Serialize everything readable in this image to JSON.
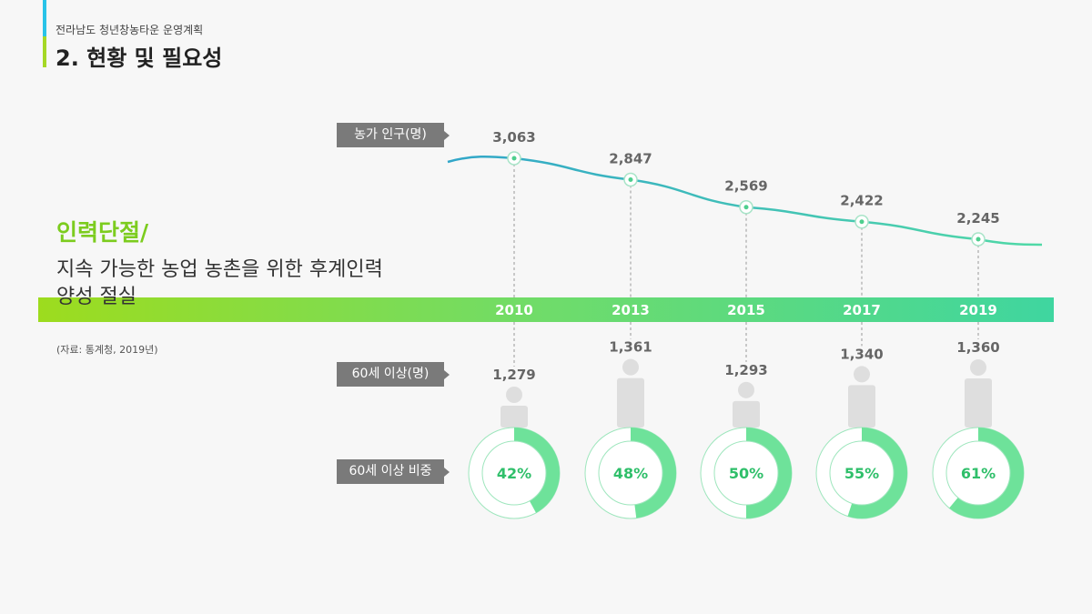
{
  "header": {
    "subtitle": "전라남도 청년창농타운 운영계획",
    "title": "2. 현황 및 필요성"
  },
  "left": {
    "headline": "인력단절/",
    "body": "지속 가능한 농업 농촌을 위한 후계인력 양성 절실",
    "source": "(자료: 통계청, 2019년)"
  },
  "colors": {
    "bar_start": "#9ddc1e",
    "bar_end": "#3fd6a0",
    "donut": "#6ee29a",
    "person": "#dedede"
  },
  "chart_data": {
    "type": "line",
    "categories": [
      "2010",
      "2013",
      "2015",
      "2017",
      "2019"
    ],
    "series": [
      {
        "name": "농가 인구(명)",
        "values": [
          3063,
          2847,
          2569,
          2422,
          2245
        ],
        "labels": [
          "3,063",
          "2,847",
          "2,569",
          "2,422",
          "2,245"
        ]
      },
      {
        "name": "60세 이상(명)",
        "values": [
          1279,
          1361,
          1293,
          1340,
          1360
        ],
        "labels": [
          "1,279",
          "1,361",
          "1,293",
          "1,340",
          "1,360"
        ]
      },
      {
        "name": "60세 이상 비중",
        "values": [
          42,
          48,
          50,
          55,
          61
        ],
        "labels": [
          "42%",
          "48%",
          "50%",
          "55%",
          "61%"
        ]
      }
    ]
  }
}
